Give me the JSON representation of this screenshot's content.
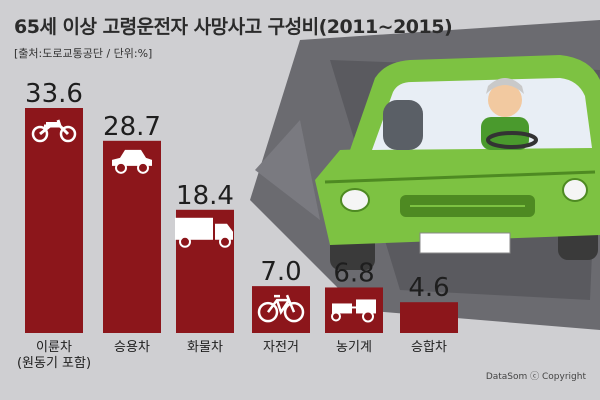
{
  "header": {
    "title": "65세 이상 고령운전자 사망사고 구성비(2011~2015)",
    "source": "[출처:도로교통공단 / 단위:%]"
  },
  "footer": {
    "credit": "DataSom ⓒ Copyright"
  },
  "colors": {
    "bar": "#8c161b",
    "background": "#cfcfd2",
    "burst_dark": "#6b6b70",
    "car_body": "#7dc242",
    "car_dark": "#4e8a22"
  },
  "chart_data": {
    "type": "bar",
    "categories": [
      "이륜차\n(원동기 포함)",
      "승용차",
      "화물차",
      "자전거",
      "농기계",
      "승합차"
    ],
    "values": [
      33.6,
      28.7,
      18.4,
      7.0,
      6.8,
      4.6
    ],
    "value_labels": [
      "33.6",
      "28.7",
      "18.4",
      "7.0",
      "6.8",
      "4.6"
    ],
    "icons": [
      "motorcycle-icon",
      "car-icon",
      "truck-icon",
      "bicycle-icon",
      "farm-machine-icon",
      ""
    ],
    "ylim": [
      0,
      33.6
    ],
    "grid": false,
    "legend": "none"
  }
}
